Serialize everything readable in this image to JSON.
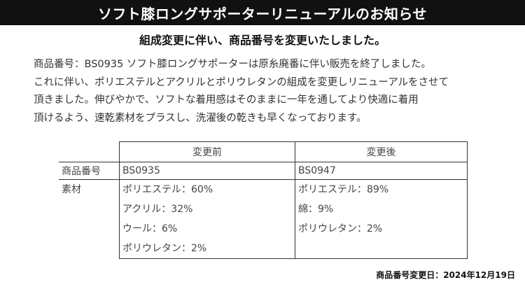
{
  "banner_title": "ソフト膝ロングサポーターリニューアルのお知らせ",
  "subtitle": "組成変更に伴い、商品番号を変更いたしました。",
  "body_lines": [
    "商品番号：BS0935 ソフト膝ロングサポーターは原糸廃番に伴い販売を終了しました。",
    "これに伴い、ポリエステルとアクリルとポリウレタンの組成を変更しリニューアルをさせて",
    "頂きました。伸びやかで、ソフトな着用感はそのままに一年を通してより快適に着用",
    "頂けるよう、速乾素材をプラスし、洗濯後の乾きも早くなっております。"
  ],
  "table": {
    "col_before": "変更前",
    "col_after": "変更後",
    "row_code_label": "商品番号",
    "code_before": "BS0935",
    "code_after": "BS0947",
    "row_material_label": "素材",
    "materials_before": [
      "ポリエステル：60%",
      "アクリル：32%",
      "ウール：6%",
      "ポリウレタン：2%"
    ],
    "materials_after": [
      "ポリエステル：89%",
      "綿：9%",
      "ポリウレタン：2%"
    ]
  },
  "footer_note": "商品番号変更日：2024年12月19日"
}
